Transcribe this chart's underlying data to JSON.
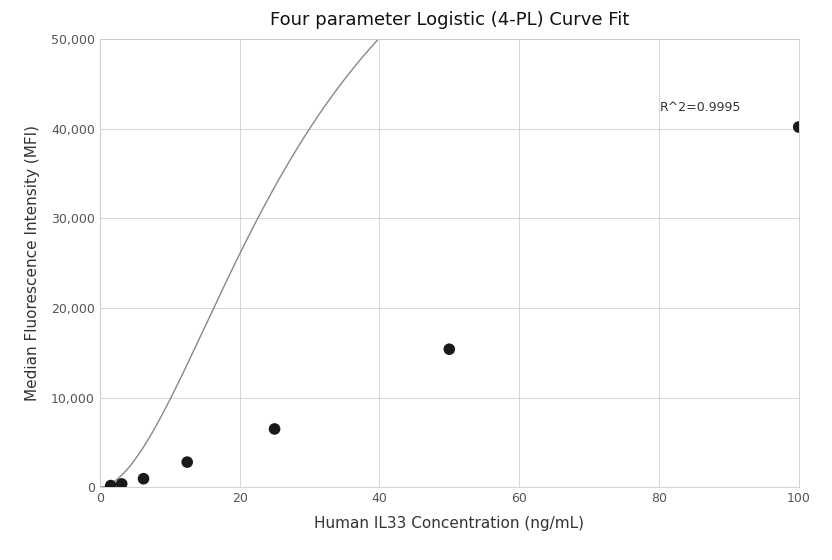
{
  "title": "Four parameter Logistic (4-PL) Curve Fit",
  "xlabel": "Human IL33 Concentration (ng/mL)",
  "ylabel": "Median Fluorescence Intensity (MFI)",
  "scatter_x": [
    1.563,
    3.125,
    6.25,
    12.5,
    25,
    50,
    100
  ],
  "scatter_y": [
    180,
    370,
    950,
    2800,
    6500,
    15400,
    40200
  ],
  "xlim": [
    0,
    100
  ],
  "ylim": [
    0,
    50000
  ],
  "yticks": [
    0,
    10000,
    20000,
    30000,
    40000,
    50000
  ],
  "xticks": [
    0,
    20,
    40,
    60,
    80,
    100
  ],
  "r_squared": "R^2=0.9995",
  "dot_color": "#1a1a1a",
  "line_color": "#888888",
  "dot_size": 70,
  "background_color": "#ffffff",
  "grid_color": "#d0d0d0",
  "title_fontsize": 13,
  "label_fontsize": 11,
  "tick_labelsize": 9
}
